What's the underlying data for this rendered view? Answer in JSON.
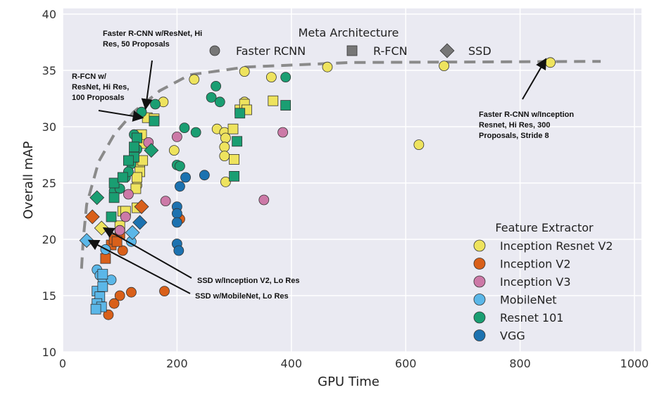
{
  "chart_data": {
    "type": "scatter",
    "xlabel": "GPU Time",
    "ylabel": "Overall mAP",
    "xlim": [
      0,
      1000
    ],
    "ylim": [
      10,
      40
    ],
    "xticks": [
      "0",
      "200",
      "400",
      "600",
      "800",
      "1000"
    ],
    "yticks": [
      "10",
      "15",
      "20",
      "25",
      "30",
      "35",
      "40"
    ],
    "grid": true,
    "marker_legend": {
      "title": "Meta Architecture",
      "placement": "top-center",
      "entries": [
        {
          "name": "Faster RCNN",
          "marker": "circle"
        },
        {
          "name": "R-FCN",
          "marker": "square"
        },
        {
          "name": "SSD",
          "marker": "diamond"
        }
      ]
    },
    "color_legend": {
      "title": "Feature Extractor",
      "placement": "bottom-right",
      "entries": [
        {
          "name": "Inception Resnet V2",
          "color": "#EEE35E"
        },
        {
          "name": "Inception V2",
          "color": "#D9601A"
        },
        {
          "name": "Inception V3",
          "color": "#CC79A7"
        },
        {
          "name": "MobileNet",
          "color": "#5BB7E8"
        },
        {
          "name": "Resnet 101",
          "color": "#1A9E72"
        },
        {
          "name": "VGG",
          "color": "#1C72B0"
        }
      ]
    },
    "frontier": [
      [
        33,
        17.4
      ],
      [
        36,
        20
      ],
      [
        42,
        23.1
      ],
      [
        63,
        26.9
      ],
      [
        90,
        29.3
      ],
      [
        124,
        31.3
      ],
      [
        170,
        33.2
      ],
      [
        222,
        34.6
      ],
      [
        321,
        35.3
      ],
      [
        505,
        35.7
      ],
      [
        941,
        35.8
      ]
    ],
    "series": [
      {
        "extractor": "Inception Resnet V2",
        "marker": "circle",
        "points": [
          [
            853,
            35.7
          ],
          [
            667,
            35.4
          ],
          [
            463,
            35.3
          ],
          [
            318,
            34.9
          ],
          [
            230,
            34.2
          ],
          [
            365,
            34.4
          ],
          [
            623,
            28.4
          ],
          [
            176,
            32.2
          ],
          [
            318,
            32.2
          ],
          [
            270,
            29.8
          ],
          [
            283,
            29.5
          ],
          [
            285,
            29.0
          ],
          [
            283,
            28.2
          ],
          [
            283,
            27.4
          ],
          [
            285,
            25.1
          ],
          [
            195,
            27.9
          ],
          [
            148,
            30.8
          ],
          [
            142,
            28.5
          ],
          [
            135,
            26.5
          ],
          [
            130,
            24.8
          ]
        ]
      },
      {
        "extractor": "Inception Resnet V2",
        "marker": "square",
        "points": [
          [
            148,
            30.8
          ],
          [
            160,
            30.7
          ],
          [
            138,
            29.3
          ],
          [
            140,
            27.0
          ],
          [
            135,
            26.0
          ],
          [
            130,
            25.5
          ],
          [
            128,
            24.5
          ],
          [
            105,
            22.5
          ],
          [
            110,
            22.5
          ],
          [
            100,
            21.2
          ],
          [
            130,
            22.8
          ],
          [
            310,
            31.5
          ],
          [
            318,
            32.0
          ],
          [
            368,
            32.3
          ],
          [
            298,
            29.8
          ],
          [
            300,
            27.1
          ],
          [
            322,
            31.5
          ]
        ]
      },
      {
        "extractor": "Inception Resnet V2",
        "marker": "diamond",
        "points": [
          [
            68,
            21.0
          ]
        ]
      },
      {
        "extractor": "Inception V2",
        "marker": "circle",
        "points": [
          [
            80,
            13.3
          ],
          [
            90,
            14.3
          ],
          [
            100,
            15.0
          ],
          [
            120,
            15.3
          ],
          [
            178,
            15.4
          ],
          [
            205,
            21.8
          ],
          [
            105,
            19.0
          ]
        ]
      },
      {
        "extractor": "Inception V2",
        "marker": "square",
        "points": [
          [
            75,
            18.3
          ],
          [
            85,
            19.5
          ],
          [
            100,
            20.5
          ],
          [
            90,
            20.0
          ],
          [
            95,
            19.8
          ]
        ]
      },
      {
        "extractor": "Inception V2",
        "marker": "diamond",
        "points": [
          [
            52,
            22.0
          ],
          [
            138,
            22.9
          ]
        ]
      },
      {
        "extractor": "Inception V3",
        "marker": "circle",
        "points": [
          [
            180,
            23.4
          ],
          [
            200,
            29.1
          ],
          [
            352,
            23.5
          ],
          [
            385,
            29.5
          ],
          [
            115,
            24.0
          ],
          [
            110,
            22.0
          ],
          [
            150,
            28.6
          ],
          [
            100,
            20.8
          ]
        ]
      },
      {
        "extractor": "MobileNet",
        "marker": "circle",
        "points": [
          [
            60,
            17.3
          ],
          [
            65,
            16.8
          ],
          [
            70,
            16.5
          ],
          [
            85,
            16.4
          ],
          [
            60,
            14.4
          ],
          [
            75,
            19.1
          ],
          [
            120,
            19.8
          ]
        ]
      },
      {
        "extractor": "MobileNet",
        "marker": "square",
        "points": [
          [
            60,
            15.4
          ],
          [
            65,
            14.9
          ],
          [
            60,
            14.3
          ],
          [
            68,
            14.0
          ],
          [
            70,
            15.8
          ],
          [
            70,
            16.9
          ],
          [
            58,
            13.8
          ]
        ]
      },
      {
        "extractor": "MobileNet",
        "marker": "diamond",
        "points": [
          [
            42,
            19.9
          ],
          [
            122,
            20.6
          ]
        ]
      },
      {
        "extractor": "Resnet 101",
        "marker": "circle",
        "points": [
          [
            390,
            34.4
          ],
          [
            268,
            33.6
          ],
          [
            260,
            32.6
          ],
          [
            275,
            32.2
          ],
          [
            162,
            32.0
          ],
          [
            138,
            31.3
          ],
          [
            213,
            29.9
          ],
          [
            233,
            29.5
          ],
          [
            125,
            29.3
          ],
          [
            200,
            26.6
          ],
          [
            205,
            26.5
          ],
          [
            120,
            26.7
          ],
          [
            110,
            25.5
          ],
          [
            130,
            28.0
          ],
          [
            115,
            26.0
          ],
          [
            90,
            24.3
          ],
          [
            100,
            24.5
          ]
        ]
      },
      {
        "extractor": "Resnet 101",
        "marker": "square",
        "points": [
          [
            390,
            31.9
          ],
          [
            310,
            31.2
          ],
          [
            305,
            28.7
          ],
          [
            300,
            25.6
          ],
          [
            130,
            29.0
          ],
          [
            125,
            28.2
          ],
          [
            125,
            27.3
          ],
          [
            90,
            25.0
          ],
          [
            105,
            25.5
          ],
          [
            90,
            23.7
          ],
          [
            85,
            22.0
          ],
          [
            115,
            27.0
          ],
          [
            160,
            30.5
          ]
        ]
      },
      {
        "extractor": "Resnet 101",
        "marker": "diamond",
        "points": [
          [
            60,
            23.7
          ],
          [
            155,
            27.9
          ]
        ]
      },
      {
        "extractor": "VGG",
        "marker": "circle",
        "points": [
          [
            215,
            25.5
          ],
          [
            248,
            25.7
          ],
          [
            205,
            24.7
          ],
          [
            200,
            22.9
          ],
          [
            200,
            22.3
          ],
          [
            200,
            21.5
          ],
          [
            200,
            19.6
          ],
          [
            203,
            19.0
          ]
        ]
      },
      {
        "extractor": "VGG",
        "marker": "diamond",
        "points": [
          [
            135,
            21.5
          ]
        ]
      }
    ],
    "annotations": [
      {
        "lines": [
          "Faster R-CNN w/ResNet, Hi",
          "Res, 50 Proposals"
        ],
        "target": [
          145,
          31.6
        ]
      },
      {
        "lines": [
          "R-FCN w/",
          "ResNet, Hi Res,",
          "100 Proposals"
        ],
        "target": [
          140,
          30.8
        ]
      },
      {
        "lines": [
          "Faster R-CNN w/Inception",
          "Resnet, Hi Res, 300",
          "Proposals, Stride 8"
        ],
        "target": [
          845,
          36.0
        ]
      },
      {
        "lines": [
          "SSD w/Inception V2, Lo Res"
        ],
        "target": [
          72,
          21.0
        ]
      },
      {
        "lines": [
          "SSD w/MobileNet, Lo Res"
        ],
        "target": [
          46,
          19.9
        ]
      }
    ]
  }
}
